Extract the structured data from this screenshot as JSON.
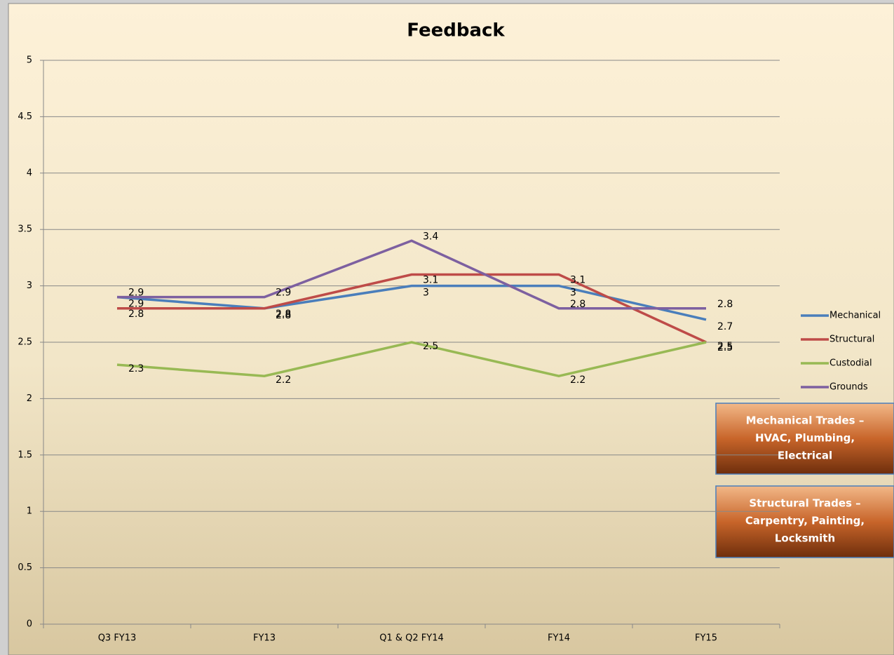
{
  "chart_data": {
    "type": "line",
    "title": "Feedback",
    "categories": [
      "Q3 FY13",
      "FY13",
      "Q1 & Q2 FY14",
      "FY14",
      "FY15"
    ],
    "series": [
      {
        "name": "Mechanical",
        "color": "#4a7ebb",
        "values": [
          2.9,
          2.8,
          3,
          3,
          2.7
        ]
      },
      {
        "name": "Structural",
        "color": "#be4b48",
        "values": [
          2.8,
          2.8,
          3.1,
          3.1,
          2.5
        ]
      },
      {
        "name": "Custodial",
        "color": "#98b954",
        "values": [
          2.3,
          2.2,
          2.5,
          2.2,
          2.5
        ]
      },
      {
        "name": "Grounds",
        "color": "#7d60a0",
        "values": [
          2.9,
          2.9,
          3.4,
          2.8,
          2.8
        ]
      }
    ],
    "ylim": [
      0,
      5
    ],
    "yticks": [
      0,
      0.5,
      1,
      1.5,
      2,
      2.5,
      3,
      3.5,
      4,
      4.5,
      5
    ],
    "grid": true,
    "legend": "right",
    "annotations": [
      [
        "Mechanical Trades –",
        "HVAC, Plumbing,",
        "Electrical"
      ],
      [
        "Structural Trades –",
        "Carpentry, Painting,",
        "Locksmith"
      ]
    ]
  }
}
